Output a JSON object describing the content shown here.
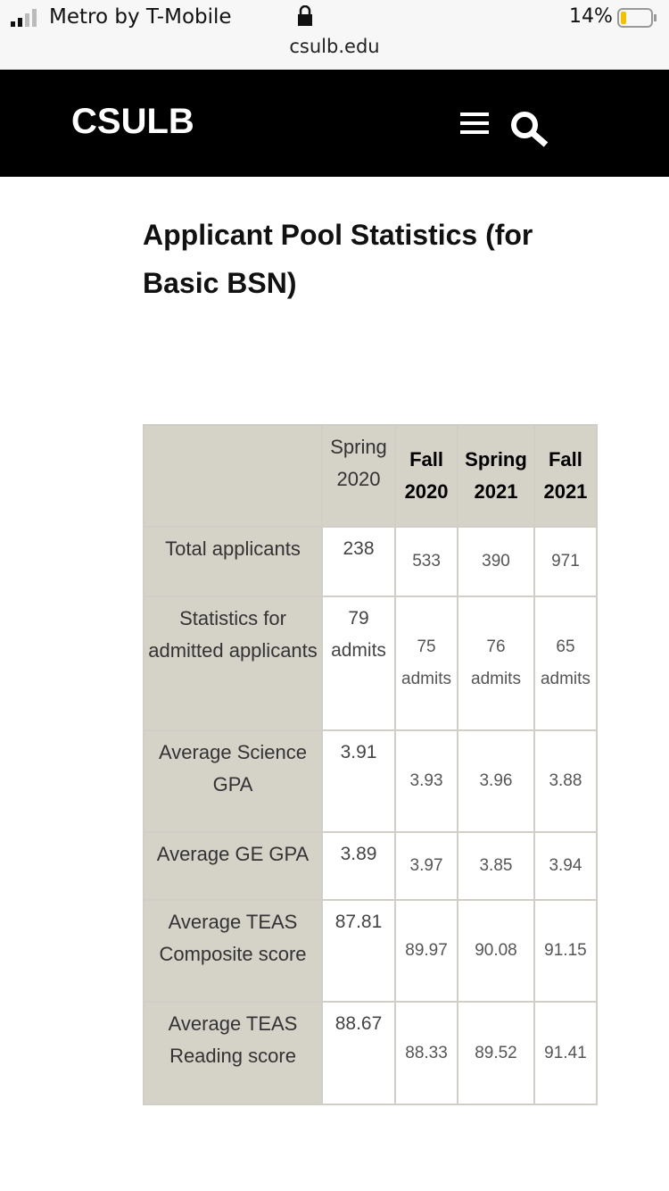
{
  "status_bar": {
    "carrier": "Metro by T-Mobile",
    "battery": "14%",
    "url": "csulb.edu"
  },
  "header": {
    "logo": "CSULB"
  },
  "title": "Applicant Pool Statistics (for Basic BSN)",
  "table": {
    "columns": [
      "Spring 2020",
      "Fall 2020",
      "Spring 2021",
      "Fall 2021"
    ],
    "rows": [
      [
        "Total applicants",
        "238",
        "533",
        "390",
        "971"
      ],
      [
        "Statistics for admitted applicants",
        "79 admits",
        "75 admits",
        "76 admits",
        "65 admits"
      ],
      [
        "Average Science GPA",
        "3.91",
        "3.93",
        "3.96",
        "3.88"
      ],
      [
        "Average GE GPA",
        "3.89",
        "3.97",
        "3.85",
        "3.94"
      ],
      [
        "Average TEAS Composite score",
        "87.81",
        "89.97",
        "90.08",
        "91.15"
      ],
      [
        "Average TEAS Reading score",
        "88.67",
        "88.33",
        "89.52",
        "91.41"
      ]
    ]
  }
}
